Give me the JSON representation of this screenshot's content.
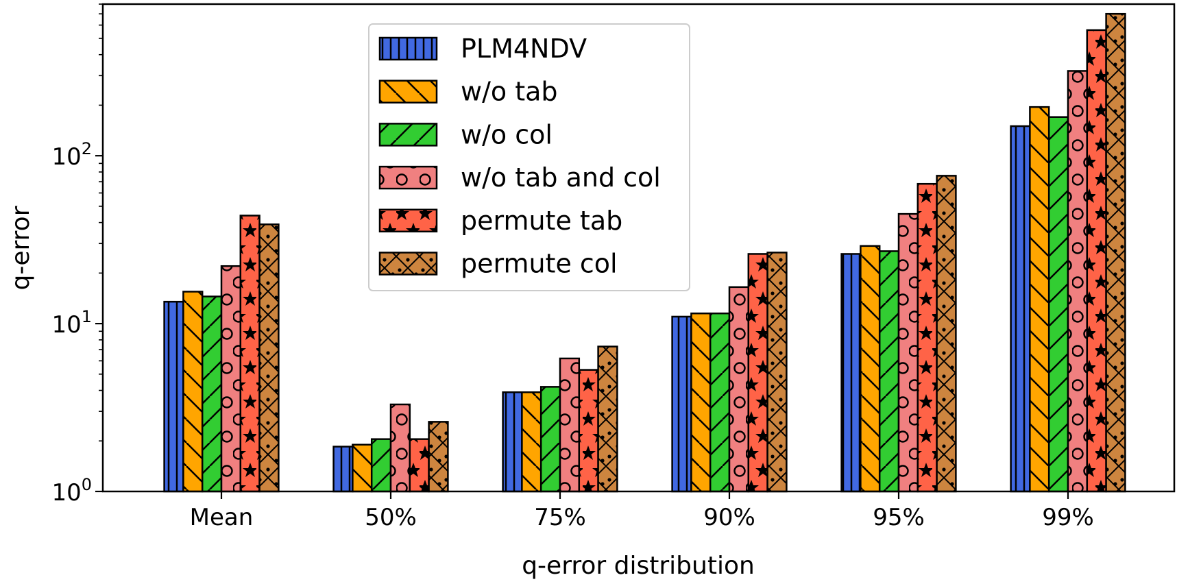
{
  "chart_data": {
    "type": "bar",
    "title": "",
    "xlabel": "q-error distribution",
    "ylabel": "q-error",
    "yscale": "log",
    "ylim": [
      1,
      800
    ],
    "grid": false,
    "legend_position": "top-center",
    "categories": [
      "Mean",
      "50%",
      "75%",
      "90%",
      "95%",
      "99%"
    ],
    "y_ticks": [
      {
        "value": 1,
        "base": "10",
        "exp": "0"
      },
      {
        "value": 10,
        "base": "10",
        "exp": "1"
      },
      {
        "value": 100,
        "base": "10",
        "exp": "2"
      }
    ],
    "series": [
      {
        "name": "PLM4NDV",
        "color": "#4169E1",
        "pattern": "vertical-lines",
        "values": [
          13.5,
          1.85,
          3.9,
          11,
          26,
          150
        ]
      },
      {
        "name": "w/o tab",
        "color": "#FFA500",
        "pattern": "back-diagonal",
        "values": [
          15.5,
          1.9,
          3.9,
          11.5,
          29,
          195
        ]
      },
      {
        "name": "w/o col",
        "color": "#32CD32",
        "pattern": "forward-diagonal",
        "values": [
          14.5,
          2.05,
          4.2,
          11.5,
          27,
          170
        ]
      },
      {
        "name": "w/o tab and col",
        "color": "#F08080",
        "pattern": "circles",
        "values": [
          22,
          3.3,
          6.2,
          16.5,
          45,
          320
        ]
      },
      {
        "name": "permute tab",
        "color": "#FF6347",
        "pattern": "stars",
        "values": [
          44,
          2.05,
          5.3,
          26,
          68,
          560
        ]
      },
      {
        "name": "permute col",
        "color": "#CD853F",
        "pattern": "cross-dots",
        "values": [
          39,
          2.6,
          7.3,
          26.5,
          76,
          700
        ]
      }
    ]
  }
}
